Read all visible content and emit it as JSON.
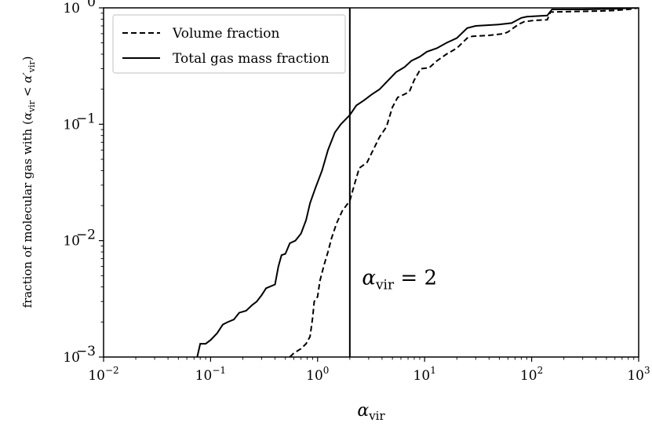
{
  "chart_data": {
    "type": "line",
    "xscale": "log",
    "yscale": "log",
    "xlim": [
      0.01,
      1000
    ],
    "ylim": [
      0.001,
      1
    ],
    "xlabel": "α_vir",
    "xlabel_main": "α",
    "xlabel_sub": "vir",
    "ylabel": "fraction of molecular gas with (α_vir < α′_vir)",
    "ylabel_prefix": "fraction of molecular gas with (",
    "ylabel_alpha": "α",
    "ylabel_sub": "vir",
    "ylabel_lt": " < ",
    "ylabel_alpha2": "α′",
    "ylabel_close": ")",
    "xticks": [
      {
        "value": 0.01,
        "base": "10",
        "exp": "−2"
      },
      {
        "value": 0.1,
        "base": "10",
        "exp": "−1"
      },
      {
        "value": 1,
        "base": "10",
        "exp": "0"
      },
      {
        "value": 10,
        "base": "10",
        "exp": "1"
      },
      {
        "value": 100,
        "base": "10",
        "exp": "2"
      },
      {
        "value": 1000,
        "base": "10",
        "exp": "3"
      }
    ],
    "yticks": [
      {
        "value": 0.001,
        "base": "10",
        "exp": "−3"
      },
      {
        "value": 0.01,
        "base": "10",
        "exp": "−2"
      },
      {
        "value": 0.1,
        "base": "10",
        "exp": "−1"
      },
      {
        "value": 1,
        "base": "10",
        "exp": "0"
      }
    ],
    "vline": {
      "x": 2
    },
    "annotation": {
      "main": "α",
      "sub": "vir",
      "rest": " = 2",
      "x": 2.6,
      "y": 0.0042
    },
    "legend": {
      "position": "top-left"
    },
    "series": [
      {
        "name": "Volume fraction",
        "style": "dashed",
        "points": [
          [
            0.55,
            0.001
          ],
          [
            0.6,
            0.00108
          ],
          [
            0.7,
            0.00118
          ],
          [
            0.78,
            0.0013
          ],
          [
            0.85,
            0.0015
          ],
          [
            0.9,
            0.0022
          ],
          [
            0.93,
            0.003
          ],
          [
            1.0,
            0.0033
          ],
          [
            1.05,
            0.0045
          ],
          [
            1.15,
            0.0062
          ],
          [
            1.25,
            0.008
          ],
          [
            1.35,
            0.0105
          ],
          [
            1.5,
            0.014
          ],
          [
            1.7,
            0.018
          ],
          [
            2.0,
            0.022
          ],
          [
            2.2,
            0.03
          ],
          [
            2.45,
            0.042
          ],
          [
            2.9,
            0.047
          ],
          [
            3.3,
            0.06
          ],
          [
            3.8,
            0.078
          ],
          [
            4.4,
            0.095
          ],
          [
            5.0,
            0.14
          ],
          [
            5.6,
            0.17
          ],
          [
            6.4,
            0.18
          ],
          [
            7.2,
            0.19
          ],
          [
            8.0,
            0.24
          ],
          [
            9.2,
            0.3
          ],
          [
            11,
            0.305
          ],
          [
            13,
            0.35
          ],
          [
            16,
            0.4
          ],
          [
            20,
            0.45
          ],
          [
            25,
            0.55
          ],
          [
            28,
            0.57
          ],
          [
            40,
            0.58
          ],
          [
            55,
            0.6
          ],
          [
            60,
            0.62
          ],
          [
            75,
            0.72
          ],
          [
            85,
            0.76
          ],
          [
            105,
            0.78
          ],
          [
            140,
            0.79
          ],
          [
            150,
            0.92
          ],
          [
            250,
            0.93
          ],
          [
            450,
            0.94
          ],
          [
            600,
            0.95
          ],
          [
            800,
            0.97
          ],
          [
            1000,
            1.0
          ]
        ]
      },
      {
        "name": "Total gas mass fraction",
        "style": "solid",
        "points": [
          [
            0.075,
            0.001
          ],
          [
            0.08,
            0.0013
          ],
          [
            0.09,
            0.0013
          ],
          [
            0.1,
            0.0014
          ],
          [
            0.115,
            0.0016
          ],
          [
            0.13,
            0.0019
          ],
          [
            0.145,
            0.002
          ],
          [
            0.165,
            0.0021
          ],
          [
            0.185,
            0.0024
          ],
          [
            0.215,
            0.0025
          ],
          [
            0.245,
            0.0028
          ],
          [
            0.27,
            0.003
          ],
          [
            0.3,
            0.0034
          ],
          [
            0.33,
            0.0039
          ],
          [
            0.4,
            0.0042
          ],
          [
            0.43,
            0.006
          ],
          [
            0.46,
            0.0075
          ],
          [
            0.5,
            0.0077
          ],
          [
            0.55,
            0.0095
          ],
          [
            0.62,
            0.01
          ],
          [
            0.7,
            0.0115
          ],
          [
            0.78,
            0.015
          ],
          [
            0.85,
            0.021
          ],
          [
            0.95,
            0.028
          ],
          [
            1.1,
            0.04
          ],
          [
            1.25,
            0.06
          ],
          [
            1.45,
            0.085
          ],
          [
            1.65,
            0.1
          ],
          [
            2.0,
            0.12
          ],
          [
            2.3,
            0.145
          ],
          [
            2.7,
            0.16
          ],
          [
            3.2,
            0.18
          ],
          [
            3.8,
            0.2
          ],
          [
            4.6,
            0.24
          ],
          [
            5.4,
            0.28
          ],
          [
            6.5,
            0.31
          ],
          [
            7.5,
            0.35
          ],
          [
            9.0,
            0.38
          ],
          [
            10.5,
            0.42
          ],
          [
            13,
            0.45
          ],
          [
            16,
            0.5
          ],
          [
            20,
            0.55
          ],
          [
            25,
            0.67
          ],
          [
            30,
            0.7
          ],
          [
            50,
            0.72
          ],
          [
            65,
            0.74
          ],
          [
            80,
            0.82
          ],
          [
            90,
            0.84
          ],
          [
            140,
            0.86
          ],
          [
            155,
            0.97
          ],
          [
            300,
            0.97
          ],
          [
            600,
            0.98
          ],
          [
            800,
            0.995
          ],
          [
            1000,
            1.0
          ]
        ]
      }
    ]
  }
}
